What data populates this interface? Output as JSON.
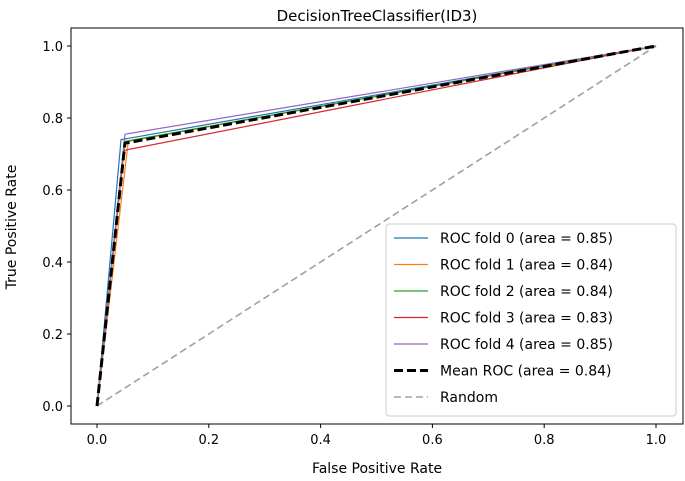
{
  "chart_data": {
    "type": "line",
    "title": "DecisionTreeClassifier(ID3)",
    "xlabel": "False Positive Rate",
    "ylabel": "True Positive Rate",
    "xlim": [
      -0.05,
      1.05
    ],
    "ylim": [
      -0.05,
      1.05
    ],
    "xticks": [
      "0.0",
      "0.2",
      "0.4",
      "0.6",
      "0.8",
      "1.0"
    ],
    "yticks": [
      "0.0",
      "0.2",
      "0.4",
      "0.6",
      "0.8",
      "1.0"
    ],
    "legend_position": "bottom-right",
    "series": [
      {
        "name": "ROC fold 0 (area = 0.85)",
        "color": "#1f77b4",
        "style": "solid",
        "x": [
          0,
          0.043,
          1
        ],
        "y": [
          0,
          0.74,
          1
        ]
      },
      {
        "name": "ROC fold 1 (area = 0.84)",
        "color": "#ff7f0e",
        "style": "solid",
        "x": [
          0,
          0.056,
          1
        ],
        "y": [
          0,
          0.735,
          1
        ]
      },
      {
        "name": "ROC fold 2 (area = 0.84)",
        "color": "#2ca02c",
        "style": "solid",
        "x": [
          0,
          0.05,
          1
        ],
        "y": [
          0,
          0.735,
          1
        ]
      },
      {
        "name": "ROC fold 3 (area = 0.83)",
        "color": "#d62728",
        "style": "solid",
        "x": [
          0,
          0.048,
          1
        ],
        "y": [
          0,
          0.71,
          1
        ]
      },
      {
        "name": "ROC fold 4 (area = 0.85)",
        "color": "#9467bd",
        "style": "solid",
        "x": [
          0,
          0.05,
          1
        ],
        "y": [
          0,
          0.755,
          1
        ]
      },
      {
        "name": "Mean ROC (area = 0.84)",
        "color": "#000000",
        "style": "dashed-bold",
        "x": [
          0,
          0.05,
          1
        ],
        "y": [
          0,
          0.73,
          1
        ]
      },
      {
        "name": "Random",
        "color": "#a0a0a0",
        "style": "dashed",
        "x": [
          0,
          1
        ],
        "y": [
          0,
          1
        ]
      }
    ]
  }
}
